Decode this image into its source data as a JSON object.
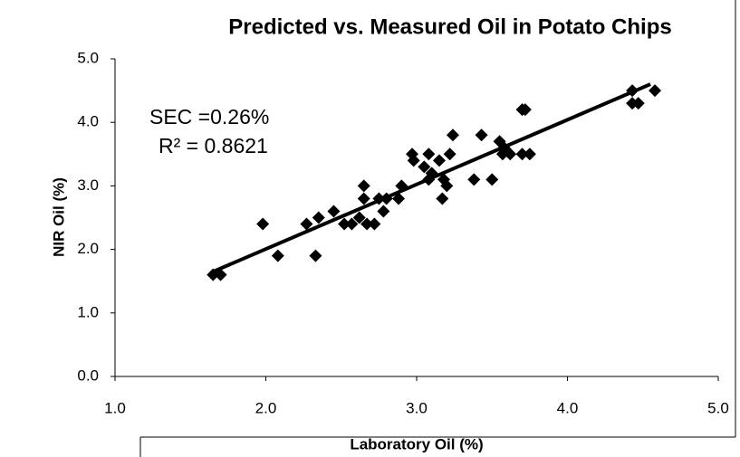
{
  "chart_data": {
    "type": "scatter",
    "title": "Predicted vs. Measured Oil in Potato Chips",
    "x_label": "Laboratory Oil (%)",
    "y_label": "NIR Oil (%)",
    "annotations": [
      "SEC =0.26%",
      "R² = 0.8621"
    ],
    "color": "#000000",
    "xlim": [
      1,
      5
    ],
    "ylim": [
      0,
      5
    ],
    "xticks": [
      {
        "value": 1,
        "label": "1.0"
      },
      {
        "value": 2,
        "label": "2.0"
      },
      {
        "value": 3,
        "label": "3.0"
      },
      {
        "value": 4,
        "label": "4.0"
      },
      {
        "value": 5,
        "label": "5.0"
      }
    ],
    "yticks": [
      {
        "value": 0,
        "label": "0.0"
      },
      {
        "value": 1,
        "label": "1.0"
      },
      {
        "value": 2,
        "label": "2.0"
      },
      {
        "value": 3,
        "label": "3.0"
      },
      {
        "value": 4,
        "label": "4.0"
      },
      {
        "value": 5,
        "label": "5.0"
      }
    ],
    "x": [
      1.65,
      1.7,
      1.98,
      2.08,
      2.27,
      2.33,
      2.35,
      2.45,
      2.52,
      2.57,
      2.62,
      2.65,
      2.65,
      2.67,
      2.72,
      2.75,
      2.78,
      2.8,
      2.88,
      2.9,
      2.97,
      2.98,
      3.05,
      3.08,
      3.08,
      3.1,
      3.15,
      3.17,
      3.18,
      3.2,
      3.22,
      3.24,
      3.38,
      3.43,
      3.5,
      3.55,
      3.57,
      3.58,
      3.62,
      3.7,
      3.72,
      3.7,
      3.75,
      4.43,
      4.43,
      4.47,
      4.58
    ],
    "y": [
      1.6,
      1.6,
      2.4,
      1.9,
      2.4,
      1.9,
      2.5,
      2.6,
      2.4,
      2.4,
      2.5,
      3.0,
      2.8,
      2.4,
      2.4,
      2.8,
      2.6,
      2.8,
      2.8,
      3.0,
      3.5,
      3.4,
      3.3,
      3.5,
      3.1,
      3.2,
      3.4,
      2.8,
      3.1,
      3.0,
      3.5,
      3.8,
      3.1,
      3.8,
      3.1,
      3.7,
      3.5,
      3.6,
      3.5,
      4.2,
      4.2,
      3.5,
      3.5,
      4.5,
      4.3,
      4.3,
      4.5
    ],
    "trendline": {
      "x": [
        1.65,
        4.55
      ],
      "y": [
        1.65,
        4.6
      ]
    }
  }
}
